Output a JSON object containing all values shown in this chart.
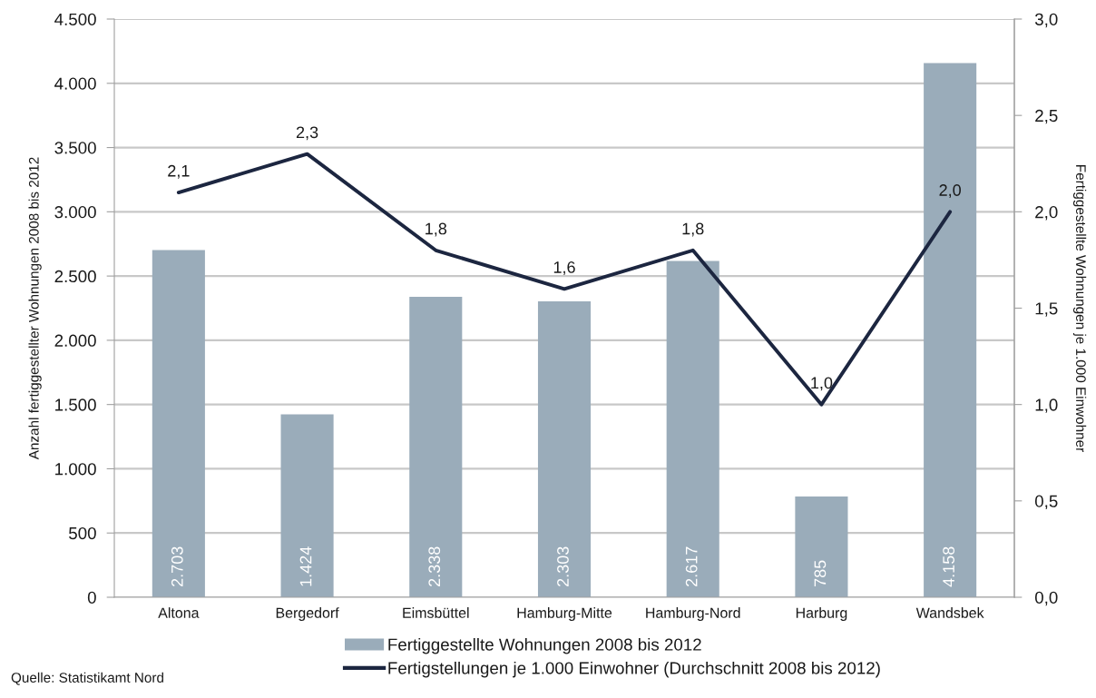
{
  "chart_data": {
    "type": "bar",
    "categories": [
      "Altona",
      "Bergedorf",
      "Eimsbüttel",
      "Hamburg-Mitte",
      "Hamburg-Nord",
      "Harburg",
      "Wandsbek"
    ],
    "ylabel": "Anzahl fertiggestellter Wohnungen 2008 bis 2012",
    "y2label": "Fertiggestellte Wohnungen je 1.000 Einwohner",
    "ylim": [
      0,
      4500
    ],
    "yticks": [
      0,
      500,
      {
        "value": 1000,
        "label": "1.000"
      },
      {
        "value": 1500,
        "label": "1.500"
      },
      {
        "value": 2000,
        "label": "2.000"
      },
      {
        "value": 2500,
        "label": "2.500"
      },
      {
        "value": 3000,
        "label": "3.000"
      },
      {
        "value": 3500,
        "label": "3.500"
      },
      {
        "value": 4000,
        "label": "4.000"
      },
      {
        "value": 4500,
        "label": "4.500"
      }
    ],
    "y2lim": [
      0,
      3
    ],
    "y2ticks": [
      {
        "value": 0,
        "label": "0,0"
      },
      {
        "value": 0.5,
        "label": "0,5"
      },
      {
        "value": 1,
        "label": "1,0"
      },
      {
        "value": 1.5,
        "label": "1,5"
      },
      {
        "value": 2,
        "label": "2,0"
      },
      {
        "value": 2.5,
        "label": "2,5"
      },
      {
        "value": 3,
        "label": "3,0"
      }
    ],
    "series": [
      {
        "name": "Fertiggestellte Wohnungen 2008 bis 2012",
        "color": "#9aacba",
        "values": [
          2703,
          1424,
          2338,
          2303,
          2617,
          785,
          4158
        ],
        "value_labels": [
          "2.703",
          "1.424",
          "2.338",
          "2.303",
          "2.617",
          "785",
          "4.158"
        ]
      },
      {
        "name": "Fertigstellungen je 1.000 Einwohner (Durchschnitt 2008 bis 2012)",
        "type": "line",
        "axis": "y2",
        "color": "#1c2640",
        "values": [
          2.1,
          2.3,
          1.8,
          1.6,
          1.8,
          1.0,
          2.0
        ],
        "value_labels": [
          "2,1",
          "2,3",
          "1,8",
          "1,6",
          "1,8",
          "1,0",
          "2,0"
        ]
      }
    ],
    "grid": "y",
    "legend": "bottom",
    "annotations": [
      "Quelle: Statistikamt Nord"
    ]
  }
}
